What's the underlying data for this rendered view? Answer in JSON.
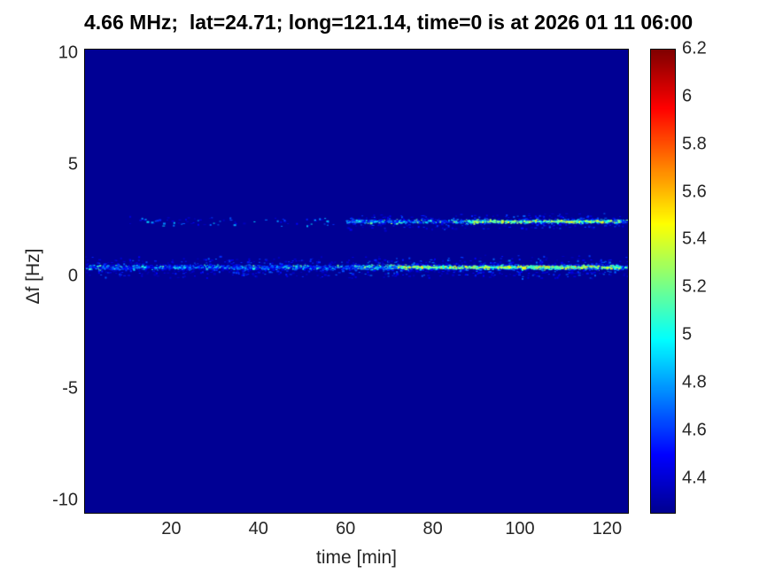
{
  "chart_data": {
    "type": "heatmap",
    "title": "4.66 MHz;  lat=24.71; long=121.14, time=0 is at 2026 01 11 06:00",
    "xlabel": "time [min]",
    "ylabel": "Δf [Hz]",
    "xlim": [
      0,
      125
    ],
    "ylim": [
      -10.6,
      10.2
    ],
    "xticks": [
      20,
      40,
      60,
      80,
      100,
      120
    ],
    "yticks": [
      -10,
      -5,
      0,
      5,
      10
    ],
    "grid": false,
    "legend": false,
    "colormap": "jet",
    "colormap_stops": [
      [
        0,
        [
          0,
          0,
          143
        ]
      ],
      [
        0.125,
        [
          0,
          0,
          255
        ]
      ],
      [
        0.375,
        [
          0,
          255,
          255
        ]
      ],
      [
        0.625,
        [
          255,
          255,
          0
        ]
      ],
      [
        0.875,
        [
          255,
          0,
          0
        ]
      ],
      [
        1,
        [
          128,
          0,
          0
        ]
      ]
    ],
    "background_value": 4.26,
    "colorbar": {
      "position": "right",
      "min": 4.25,
      "max": 6.2,
      "ticks": [
        4.4,
        4.6,
        4.8,
        5,
        5.2,
        5.4,
        5.6,
        5.8,
        6,
        6.2
      ]
    },
    "noise_seed": 1337,
    "traces": [
      {
        "name": "doppler-trace-near-0.5Hz",
        "delta_f": 0.45,
        "description": "continuous speckled line across full time span, brighter (green/yellow) after t=70",
        "segments": [
          {
            "t0": 0,
            "t1": 60,
            "points_per_min": 14,
            "spread": 0.12,
            "vmin": 4.45,
            "vmax": 5.2
          },
          {
            "t0": 0,
            "t1": 60,
            "points_per_min": 7,
            "spread": 0.5,
            "vmin": 4.35,
            "vmax": 4.7
          },
          {
            "t0": 60,
            "t1": 125,
            "points_per_min": 22,
            "spread": 0.12,
            "vmin": 4.5,
            "vmax": 5.35
          },
          {
            "t0": 60,
            "t1": 125,
            "points_per_min": 9,
            "spread": 0.55,
            "vmin": 4.35,
            "vmax": 4.75
          },
          {
            "t0": 72,
            "t1": 123,
            "points_per_min": 9,
            "spread": 0.07,
            "vmin": 5.0,
            "vmax": 5.6
          }
        ]
      },
      {
        "name": "doppler-trace-near-2.5Hz",
        "delta_f": 2.5,
        "description": "sparse speckles t=10..58, dense bright speckled line t=60..125",
        "segments": [
          {
            "t0": 10,
            "t1": 58,
            "points_per_min": 1.6,
            "spread": 0.25,
            "vmin": 4.35,
            "vmax": 4.95
          },
          {
            "t0": 60,
            "t1": 125,
            "points_per_min": 13,
            "spread": 0.1,
            "vmin": 4.5,
            "vmax": 5.3
          },
          {
            "t0": 60,
            "t1": 125,
            "points_per_min": 5,
            "spread": 0.4,
            "vmin": 4.35,
            "vmax": 4.7
          },
          {
            "t0": 88,
            "t1": 123,
            "points_per_min": 7,
            "spread": 0.07,
            "vmin": 5.0,
            "vmax": 5.55
          }
        ]
      }
    ]
  }
}
